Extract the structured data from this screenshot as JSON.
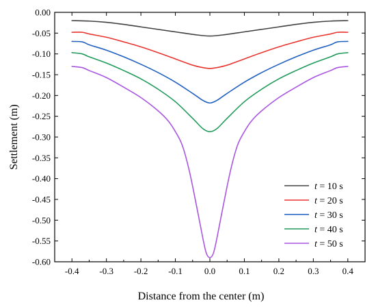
{
  "chart_data": {
    "type": "line",
    "xlabel": "Distance from the center (m)",
    "ylabel": "Settlement (m)",
    "xlim": [
      -0.45,
      0.45
    ],
    "ylim": [
      -0.6,
      0.0
    ],
    "xticks": [
      -0.4,
      -0.3,
      -0.2,
      -0.1,
      0.0,
      0.1,
      0.2,
      0.3,
      0.4
    ],
    "xtick_labels": [
      "-0.4",
      "-0.3",
      "-0.2",
      "-0.1",
      "0.0",
      "0.1",
      "0.2",
      "0.3",
      "0.4"
    ],
    "yticks": [
      0.0,
      -0.05,
      -0.1,
      -0.15,
      -0.2,
      -0.25,
      -0.3,
      -0.35,
      -0.4,
      -0.45,
      -0.5,
      -0.55,
      -0.6
    ],
    "ytick_labels": [
      "0.00",
      "-0.05",
      "-0.10",
      "-0.15",
      "-0.20",
      "-0.25",
      "-0.30",
      "-0.35",
      "-0.40",
      "-0.45",
      "-0.50",
      "-0.55",
      "-0.60"
    ],
    "grid": false,
    "legend_position": "bottom-right",
    "series": [
      {
        "name_var": "t",
        "name_rest": " = 10 s",
        "color": "#404040",
        "x": [
          -0.4,
          -0.35,
          -0.3,
          -0.25,
          -0.2,
          -0.15,
          -0.1,
          -0.05,
          0.0,
          0.05,
          0.1,
          0.15,
          0.2,
          0.25,
          0.3,
          0.35,
          0.4
        ],
        "y": [
          -0.02,
          -0.021,
          -0.024,
          -0.029,
          -0.035,
          -0.041,
          -0.047,
          -0.053,
          -0.057,
          -0.053,
          -0.047,
          -0.041,
          -0.035,
          -0.029,
          -0.024,
          -0.021,
          -0.02
        ]
      },
      {
        "name_var": "t",
        "name_rest": " = 20 s",
        "color": "#e8342e",
        "x": [
          -0.4,
          -0.37,
          -0.35,
          -0.3,
          -0.25,
          -0.2,
          -0.15,
          -0.1,
          -0.05,
          -0.02,
          0.0,
          0.02,
          0.05,
          0.1,
          0.15,
          0.2,
          0.25,
          0.3,
          0.35,
          0.37,
          0.4
        ],
        "y": [
          -0.048,
          -0.048,
          -0.052,
          -0.06,
          -0.071,
          -0.083,
          -0.097,
          -0.112,
          -0.127,
          -0.133,
          -0.135,
          -0.133,
          -0.127,
          -0.112,
          -0.097,
          -0.083,
          -0.071,
          -0.06,
          -0.052,
          -0.048,
          -0.048
        ]
      },
      {
        "name_var": "t",
        "name_rest": " = 30 s",
        "color": "#1f5fbf",
        "x": [
          -0.4,
          -0.37,
          -0.35,
          -0.3,
          -0.25,
          -0.2,
          -0.15,
          -0.1,
          -0.05,
          -0.02,
          0.0,
          0.02,
          0.05,
          0.1,
          0.15,
          0.2,
          0.25,
          0.3,
          0.35,
          0.37,
          0.4
        ],
        "y": [
          -0.07,
          -0.071,
          -0.078,
          -0.091,
          -0.107,
          -0.125,
          -0.145,
          -0.168,
          -0.195,
          -0.212,
          -0.218,
          -0.212,
          -0.195,
          -0.168,
          -0.145,
          -0.125,
          -0.107,
          -0.091,
          -0.078,
          -0.071,
          -0.07
        ]
      },
      {
        "name_var": "t",
        "name_rest": " = 40 s",
        "color": "#1f9a5a",
        "x": [
          -0.4,
          -0.37,
          -0.35,
          -0.3,
          -0.25,
          -0.2,
          -0.15,
          -0.1,
          -0.05,
          -0.02,
          0.0,
          0.02,
          0.05,
          0.1,
          0.15,
          0.2,
          0.25,
          0.3,
          0.35,
          0.37,
          0.4
        ],
        "y": [
          -0.097,
          -0.1,
          -0.107,
          -0.122,
          -0.14,
          -0.16,
          -0.185,
          -0.215,
          -0.255,
          -0.28,
          -0.287,
          -0.28,
          -0.255,
          -0.215,
          -0.185,
          -0.16,
          -0.14,
          -0.122,
          -0.107,
          -0.1,
          -0.097
        ]
      },
      {
        "name_var": "t",
        "name_rest": " = 50 s",
        "color": "#a855e0",
        "x": [
          -0.4,
          -0.37,
          -0.35,
          -0.3,
          -0.25,
          -0.2,
          -0.15,
          -0.12,
          -0.1,
          -0.08,
          -0.06,
          -0.04,
          -0.02,
          -0.01,
          0.0,
          0.01,
          0.02,
          0.04,
          0.06,
          0.08,
          0.1,
          0.12,
          0.15,
          0.2,
          0.25,
          0.3,
          0.35,
          0.37,
          0.4
        ],
        "y": [
          -0.13,
          -0.133,
          -0.14,
          -0.157,
          -0.18,
          -0.205,
          -0.237,
          -0.262,
          -0.287,
          -0.32,
          -0.38,
          -0.46,
          -0.545,
          -0.58,
          -0.59,
          -0.58,
          -0.545,
          -0.46,
          -0.38,
          -0.32,
          -0.287,
          -0.262,
          -0.237,
          -0.205,
          -0.18,
          -0.157,
          -0.14,
          -0.133,
          -0.13
        ]
      }
    ]
  }
}
